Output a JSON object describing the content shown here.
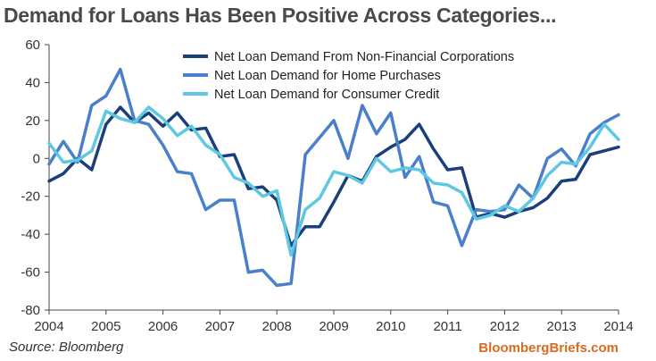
{
  "title": "Demand for Loans Has Been Positive Across Categories...",
  "source": "Source: Bloomberg",
  "brand": "BloombergBriefs.com",
  "chart_data": {
    "type": "line",
    "title": "Demand for Loans Has Been Positive Across Categories...",
    "xlabel": "",
    "ylabel": "",
    "xlim": [
      2004,
      2014
    ],
    "ylim": [
      -80,
      60
    ],
    "x_ticks": [
      "2004",
      "2005",
      "2006",
      "2007",
      "2008",
      "2009",
      "2010",
      "2011",
      "2012",
      "2013",
      "2014"
    ],
    "y_ticks": [
      "60",
      "40",
      "20",
      "0",
      "-20",
      "-40",
      "-60",
      "-80"
    ],
    "x": [
      2004.0,
      2004.25,
      2004.5,
      2004.75,
      2005.0,
      2005.25,
      2005.5,
      2005.75,
      2006.0,
      2006.25,
      2006.5,
      2006.75,
      2007.0,
      2007.25,
      2007.5,
      2007.75,
      2008.0,
      2008.25,
      2008.5,
      2008.75,
      2009.0,
      2009.25,
      2009.5,
      2009.75,
      2010.0,
      2010.25,
      2010.5,
      2010.75,
      2011.0,
      2011.25,
      2011.5,
      2011.75,
      2012.0,
      2012.25,
      2012.5,
      2012.75,
      2013.0,
      2013.25,
      2013.5,
      2013.75,
      2014.0
    ],
    "series": [
      {
        "name": "Net Loan Demand From Non-Financial Corporations",
        "color": "#1a3f7a",
        "values": [
          -12,
          -8,
          0,
          -6,
          18,
          27,
          19,
          24,
          17,
          24,
          15,
          16,
          1,
          2,
          -16,
          -15,
          -22,
          -46,
          -36,
          -36,
          -23,
          -9,
          -12,
          1,
          6,
          10,
          18,
          5,
          -6,
          -5,
          -31,
          -29,
          -31,
          -28,
          -26,
          -21,
          -12,
          -11,
          2,
          4,
          6
        ]
      },
      {
        "name": "Net Loan Demand for Home Purchases",
        "color": "#4a7fc9",
        "values": [
          -3,
          9,
          -2,
          28,
          33,
          47,
          20,
          18,
          7,
          -7,
          -8,
          -27,
          -22,
          -22,
          -60,
          -59,
          -67,
          -66,
          2,
          11,
          20,
          0,
          28,
          13,
          24,
          -10,
          1,
          -23,
          -25,
          -46,
          -27,
          -28,
          -27,
          -14,
          -21,
          0,
          5,
          -4,
          13,
          19,
          23
        ]
      },
      {
        "name": "Net Loan Demand for Consumer Credit",
        "color": "#5ec8e3",
        "values": [
          8,
          -2,
          -1,
          4,
          25,
          21,
          19,
          27,
          21,
          12,
          17,
          7,
          2,
          -10,
          -13,
          -20,
          -17,
          -51,
          -27,
          -21,
          -7,
          -9,
          -13,
          0,
          -7,
          -5,
          -6,
          -13,
          -14,
          -18,
          -32,
          -30,
          -25,
          -28,
          -21,
          -9,
          -2,
          -3,
          6,
          18,
          10
        ]
      }
    ],
    "legend_position": "top-center",
    "grid": false
  }
}
